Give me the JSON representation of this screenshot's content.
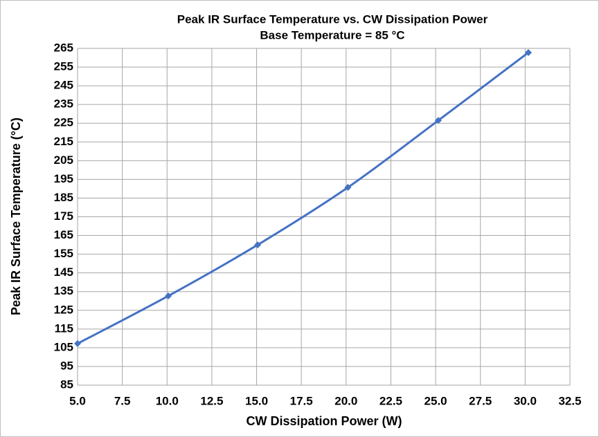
{
  "chart_data": {
    "type": "line",
    "title": "Peak IR Surface Temperature vs. CW Dissipation Power",
    "subtitle": "Base Temperature = 85 °C",
    "x_label": "CW Dissipation Power (W)",
    "y_label": "Peak IR Surface Temperature (°C)",
    "x": [
      5.0,
      10.07,
      15.06,
      20.1,
      25.15,
      30.18
    ],
    "series": [
      {
        "name": "Peak IR Surface Temperature",
        "color": "#4472c4",
        "values": [
          107.2,
          132.7,
          160,
          190.7,
          226.5,
          262.8
        ]
      }
    ],
    "xlim": [
      5,
      32.5
    ],
    "xticks": [
      {
        "value": 5,
        "label": "5.0"
      },
      7.5,
      {
        "value": 10,
        "label": "10.0"
      },
      12.5,
      {
        "value": 15,
        "label": "15.0"
      },
      17.5,
      {
        "value": 20,
        "label": "20.0"
      },
      22.5,
      {
        "value": 25,
        "label": "25.0"
      },
      27.5,
      {
        "value": 30,
        "label": "30.0"
      },
      32.5
    ],
    "ylim": [
      85,
      265
    ],
    "yticks": [
      85,
      95,
      105,
      115,
      125,
      135,
      145,
      155,
      165,
      175,
      185,
      195,
      205,
      215,
      225,
      235,
      245,
      255,
      265
    ],
    "grid": true
  }
}
